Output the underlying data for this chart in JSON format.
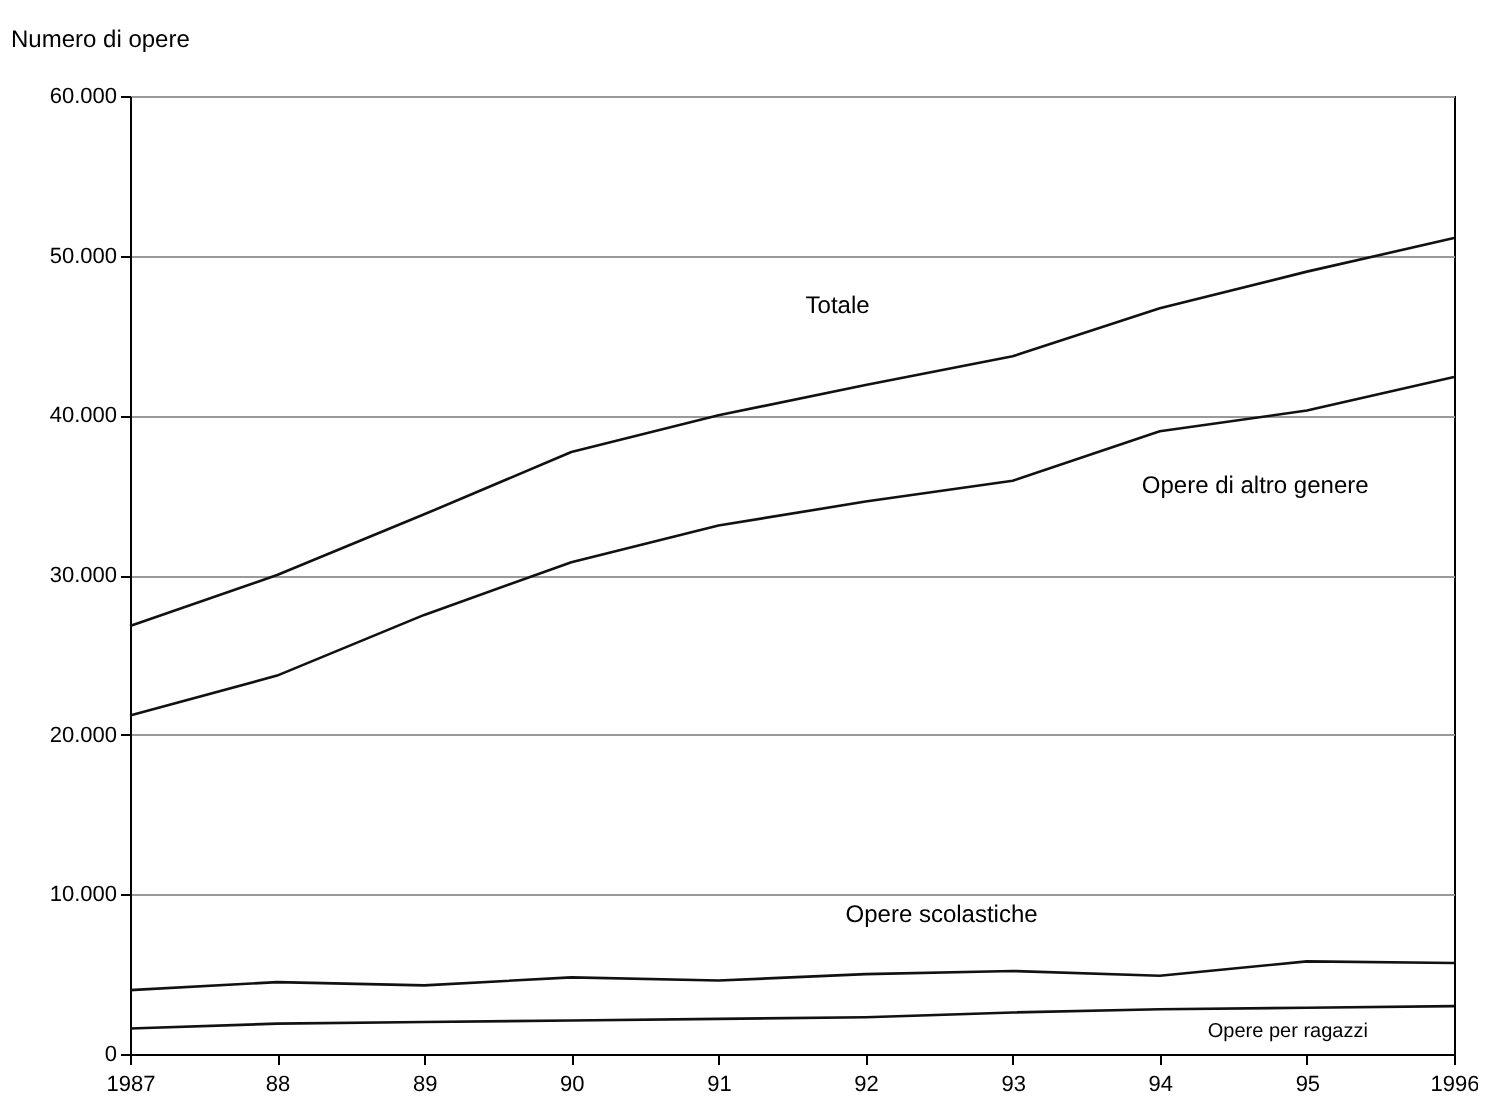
{
  "chart_data": {
    "type": "line",
    "ylabel": "Numero di opere",
    "categories": [
      "1987",
      "88",
      "89",
      "90",
      "91",
      "92",
      "93",
      "94",
      "95",
      "1996"
    ],
    "series": [
      {
        "name": "Totale",
        "color": "#111111",
        "values": [
          26800,
          30000,
          33800,
          37700,
          40000,
          41900,
          43700,
          46700,
          49000,
          51100
        ]
      },
      {
        "name": "Opere di altro genere",
        "color": "#111111",
        "values": [
          21200,
          23700,
          27500,
          30800,
          33100,
          34600,
          35900,
          39000,
          40300,
          42400
        ]
      },
      {
        "name": "Opere  scolastiche",
        "color": "#111111",
        "values": [
          4000,
          4500,
          4300,
          4800,
          4600,
          5000,
          5200,
          4900,
          5800,
          5700
        ]
      },
      {
        "name": "Opere per ragazzi",
        "color": "#111111",
        "values": [
          1600,
          1900,
          2000,
          2100,
          2200,
          2300,
          2600,
          2800,
          2900,
          3000
        ]
      }
    ],
    "ylim": [
      0,
      60000
    ],
    "yticks": [
      0,
      {
        "value": 10000,
        "label": "10.000"
      },
      {
        "value": 20000,
        "label": "20.000"
      },
      {
        "value": 30000,
        "label": "30.000"
      },
      {
        "value": 40000,
        "label": "40.000"
      },
      {
        "value": 50000,
        "label": "50.000"
      },
      {
        "value": 60000,
        "label": "60.000"
      }
    ],
    "grid": "y",
    "legend": false,
    "marker": "none",
    "line_style": "solid"
  }
}
